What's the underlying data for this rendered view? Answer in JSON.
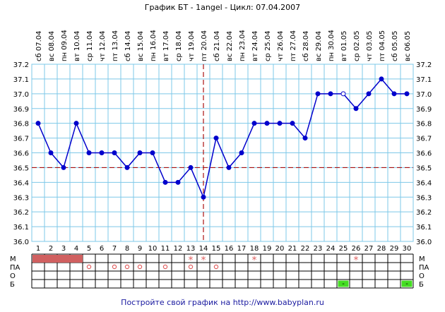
{
  "header": {
    "title": "График БТ - 1angel - Цикл: 07.04.2007"
  },
  "footer": {
    "text": "Постройте свой график на http://www.babyplan.ru"
  },
  "colors": {
    "grid": "#7ec8e8",
    "line": "#0000cc",
    "coverline": "#aa1111",
    "menses": "#d06060",
    "mark": "#e06060",
    "green": "#44dd22"
  },
  "chart_data": {
    "type": "line",
    "title": "График БТ - 1angel - Цикл: 07.04.2007",
    "ylim": [
      36.0,
      37.2
    ],
    "y_ticks": [
      "36.0",
      "36.1",
      "36.2",
      "36.3",
      "36.4",
      "36.5",
      "36.6",
      "36.7",
      "36.8",
      "36.9",
      "37.0",
      "37.1",
      "37.2"
    ],
    "coverline": 36.5,
    "ovulation_day": 14,
    "days": [
      1,
      2,
      3,
      4,
      5,
      6,
      7,
      8,
      9,
      10,
      11,
      12,
      13,
      14,
      15,
      16,
      17,
      18,
      19,
      20,
      21,
      22,
      23,
      24,
      25,
      26,
      27,
      28,
      29,
      30
    ],
    "weekdays": [
      "сб",
      "вс",
      "пн",
      "вт",
      "ср",
      "чт",
      "пт",
      "сб",
      "вс",
      "пн",
      "вт",
      "ср",
      "чт",
      "пт",
      "сб",
      "вс",
      "пн",
      "вт",
      "ср",
      "чт",
      "пт",
      "сб",
      "вс",
      "пн",
      "вт",
      "ср",
      "чт",
      "пт",
      "сб",
      "вс"
    ],
    "dates": [
      "07.04",
      "08.04",
      "09.04",
      "10.04",
      "11.04",
      "12.04",
      "13.04",
      "14.04",
      "15.04",
      "16.04",
      "17.04",
      "18.04",
      "19.04",
      "20.04",
      "21.04",
      "22.04",
      "23.04",
      "24.04",
      "25.04",
      "26.04",
      "27.04",
      "28.04",
      "29.04",
      "30.04",
      "01.05",
      "02.05",
      "03.05",
      "04.05",
      "05.05",
      "06.05"
    ],
    "values": [
      36.8,
      36.6,
      36.5,
      36.8,
      36.6,
      36.6,
      36.6,
      36.5,
      36.6,
      36.6,
      36.4,
      36.4,
      36.5,
      36.3,
      36.7,
      36.5,
      36.6,
      36.8,
      36.8,
      36.8,
      36.8,
      36.7,
      37.0,
      37.0,
      37.0,
      36.9,
      37.0,
      37.1,
      37.0,
      37.0
    ],
    "open_points": [
      25
    ],
    "rows": [
      {
        "label": "М"
      },
      {
        "label": "ПА"
      },
      {
        "label": "О"
      },
      {
        "label": "Б"
      }
    ],
    "menses_days": [
      1,
      2,
      3,
      4
    ],
    "m_asterisk_days": [
      13,
      14,
      18,
      26
    ],
    "pa_circle_days": [
      5,
      7,
      8,
      9,
      11,
      13,
      15
    ],
    "b_marks": [
      {
        "day": 25,
        "text": "-"
      },
      {
        "day": 30,
        "text": "-"
      }
    ],
    "asterisk_symbol": "*"
  }
}
